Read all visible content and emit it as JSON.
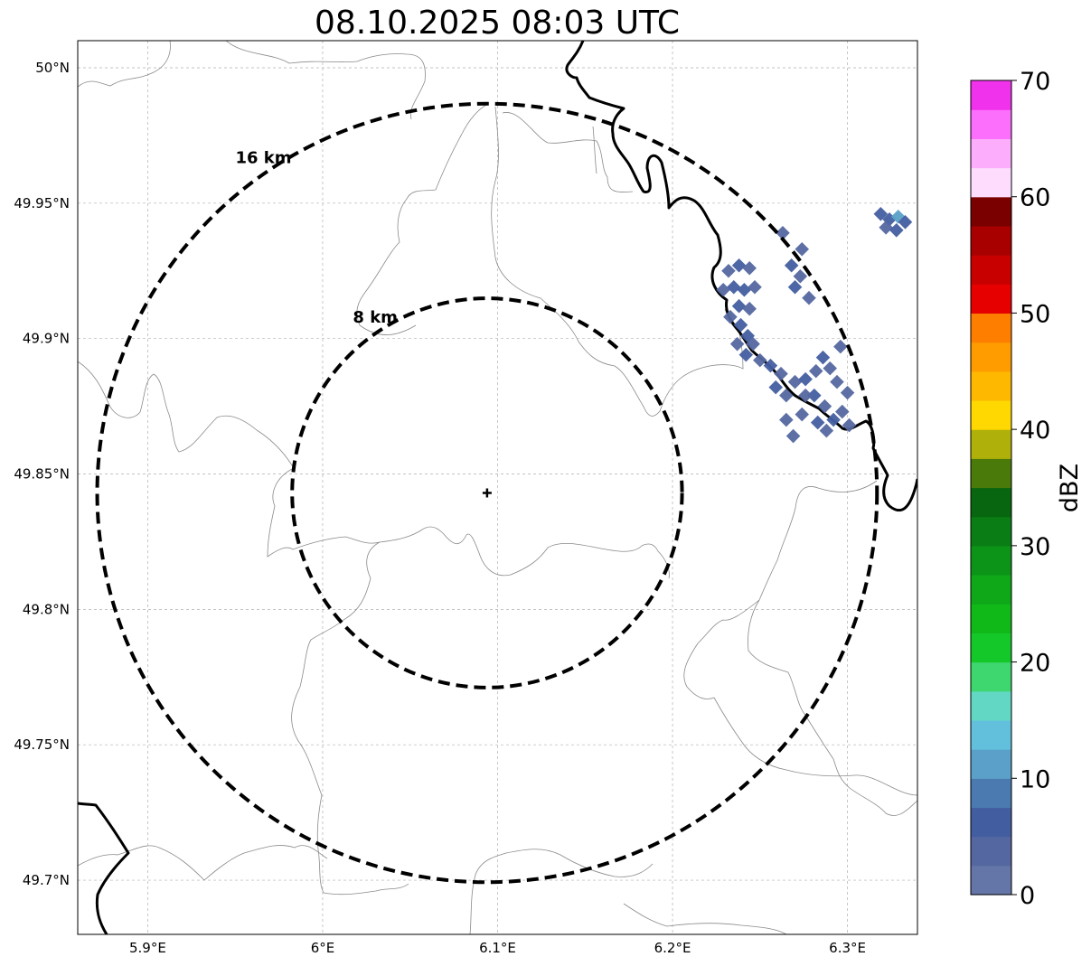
{
  "title": "08.10.2025 08:03 UTC",
  "map": {
    "lon_range": [
      5.86,
      6.34
    ],
    "lat_range": [
      49.68,
      50.01
    ],
    "x_ticks": [
      {
        "value": 5.9,
        "label": "5.9°E"
      },
      {
        "value": 6.0,
        "label": "6°E"
      },
      {
        "value": 6.1,
        "label": "6.1°E"
      },
      {
        "value": 6.2,
        "label": "6.2°E"
      },
      {
        "value": 6.3,
        "label": "6.3°E"
      }
    ],
    "y_ticks": [
      {
        "value": 50.0,
        "label": "50°N"
      },
      {
        "value": 49.95,
        "label": "49.95°N"
      },
      {
        "value": 49.9,
        "label": "49.9°N"
      },
      {
        "value": 49.85,
        "label": "49.85°N"
      },
      {
        "value": 49.8,
        "label": "49.8°N"
      },
      {
        "value": 49.75,
        "label": "49.75°N"
      },
      {
        "value": 49.7,
        "label": "49.7°N"
      }
    ],
    "radar_site": {
      "lon": 6.094,
      "lat": 49.843
    },
    "rings": [
      {
        "label": "8 km",
        "radius_km": 8
      },
      {
        "label": "16 km",
        "radius_km": 16
      }
    ]
  },
  "colorbar": {
    "label": "dBZ",
    "range": [
      0,
      70
    ],
    "tick_values": [
      0,
      10,
      20,
      30,
      40,
      50,
      60,
      70
    ],
    "tick_labels": [
      "0",
      "10",
      "20",
      "30",
      "40",
      "50",
      "60",
      "70"
    ],
    "colors": [
      "#6476a8",
      "#5467a0",
      "#435ea0",
      "#4a7ab0",
      "#5aa0c8",
      "#62c0dc",
      "#62d8c4",
      "#3ed66e",
      "#14c82a",
      "#10b818",
      "#0ea818",
      "#0c9418",
      "#0a7e14",
      "#07660f",
      "#4a7a0a",
      "#afb00a",
      "#fed800",
      "#feb800",
      "#fe9c00",
      "#fe7e00",
      "#e60000",
      "#c80000",
      "#a80000",
      "#7a0000",
      "#fedcfe",
      "#fcaefc",
      "#fc6efc",
      "#f032ec"
    ]
  },
  "chart_data": {
    "type": "heatmap",
    "title": "08.10.2025 08:03 UTC",
    "xlabel": "",
    "ylabel": "",
    "x_range": [
      5.86,
      6.34
    ],
    "y_range": [
      49.68,
      50.01
    ],
    "value_label": "dBZ",
    "value_range": [
      0,
      70
    ],
    "echoes": [
      {
        "lon": 6.232,
        "lat": 49.925,
        "dbz": 4
      },
      {
        "lon": 6.238,
        "lat": 49.927,
        "dbz": 5
      },
      {
        "lon": 6.244,
        "lat": 49.926,
        "dbz": 4
      },
      {
        "lon": 6.235,
        "lat": 49.919,
        "dbz": 6
      },
      {
        "lon": 6.241,
        "lat": 49.918,
        "dbz": 5
      },
      {
        "lon": 6.247,
        "lat": 49.919,
        "dbz": 4
      },
      {
        "lon": 6.229,
        "lat": 49.918,
        "dbz": 4
      },
      {
        "lon": 6.238,
        "lat": 49.912,
        "dbz": 5
      },
      {
        "lon": 6.244,
        "lat": 49.911,
        "dbz": 4
      },
      {
        "lon": 6.233,
        "lat": 49.908,
        "dbz": 4
      },
      {
        "lon": 6.239,
        "lat": 49.905,
        "dbz": 5
      },
      {
        "lon": 6.243,
        "lat": 49.901,
        "dbz": 6
      },
      {
        "lon": 6.237,
        "lat": 49.898,
        "dbz": 4
      },
      {
        "lon": 6.242,
        "lat": 49.894,
        "dbz": 5
      },
      {
        "lon": 6.246,
        "lat": 49.898,
        "dbz": 4
      },
      {
        "lon": 6.268,
        "lat": 49.927,
        "dbz": 5
      },
      {
        "lon": 6.273,
        "lat": 49.923,
        "dbz": 4
      },
      {
        "lon": 6.27,
        "lat": 49.919,
        "dbz": 5
      },
      {
        "lon": 6.274,
        "lat": 49.933,
        "dbz": 4
      },
      {
        "lon": 6.263,
        "lat": 49.939,
        "dbz": 3
      },
      {
        "lon": 6.278,
        "lat": 49.915,
        "dbz": 3
      },
      {
        "lon": 6.25,
        "lat": 49.892,
        "dbz": 4
      },
      {
        "lon": 6.256,
        "lat": 49.89,
        "dbz": 5
      },
      {
        "lon": 6.262,
        "lat": 49.887,
        "dbz": 4
      },
      {
        "lon": 6.259,
        "lat": 49.882,
        "dbz": 5
      },
      {
        "lon": 6.265,
        "lat": 49.879,
        "dbz": 4
      },
      {
        "lon": 6.27,
        "lat": 49.884,
        "dbz": 4
      },
      {
        "lon": 6.276,
        "lat": 49.885,
        "dbz": 5
      },
      {
        "lon": 6.282,
        "lat": 49.888,
        "dbz": 4
      },
      {
        "lon": 6.286,
        "lat": 49.893,
        "dbz": 5
      },
      {
        "lon": 6.29,
        "lat": 49.889,
        "dbz": 4
      },
      {
        "lon": 6.294,
        "lat": 49.884,
        "dbz": 4
      },
      {
        "lon": 6.281,
        "lat": 49.879,
        "dbz": 5
      },
      {
        "lon": 6.287,
        "lat": 49.875,
        "dbz": 4
      },
      {
        "lon": 6.292,
        "lat": 49.87,
        "dbz": 5
      },
      {
        "lon": 6.297,
        "lat": 49.873,
        "dbz": 4
      },
      {
        "lon": 6.274,
        "lat": 49.872,
        "dbz": 4
      },
      {
        "lon": 6.283,
        "lat": 49.869,
        "dbz": 5
      },
      {
        "lon": 6.288,
        "lat": 49.866,
        "dbz": 4
      },
      {
        "lon": 6.265,
        "lat": 49.87,
        "dbz": 3
      },
      {
        "lon": 6.269,
        "lat": 49.864,
        "dbz": 3
      },
      {
        "lon": 6.3,
        "lat": 49.88,
        "dbz": 3
      },
      {
        "lon": 6.296,
        "lat": 49.897,
        "dbz": 3
      },
      {
        "lon": 6.301,
        "lat": 49.868,
        "dbz": 4
      },
      {
        "lon": 6.276,
        "lat": 49.879,
        "dbz": 4
      },
      {
        "lon": 6.319,
        "lat": 49.946,
        "dbz": 5
      },
      {
        "lon": 6.324,
        "lat": 49.944,
        "dbz": 6
      },
      {
        "lon": 6.329,
        "lat": 49.945,
        "dbz": 10
      },
      {
        "lon": 6.333,
        "lat": 49.943,
        "dbz": 5
      },
      {
        "lon": 6.322,
        "lat": 49.941,
        "dbz": 4
      },
      {
        "lon": 6.328,
        "lat": 49.94,
        "dbz": 5
      }
    ]
  }
}
